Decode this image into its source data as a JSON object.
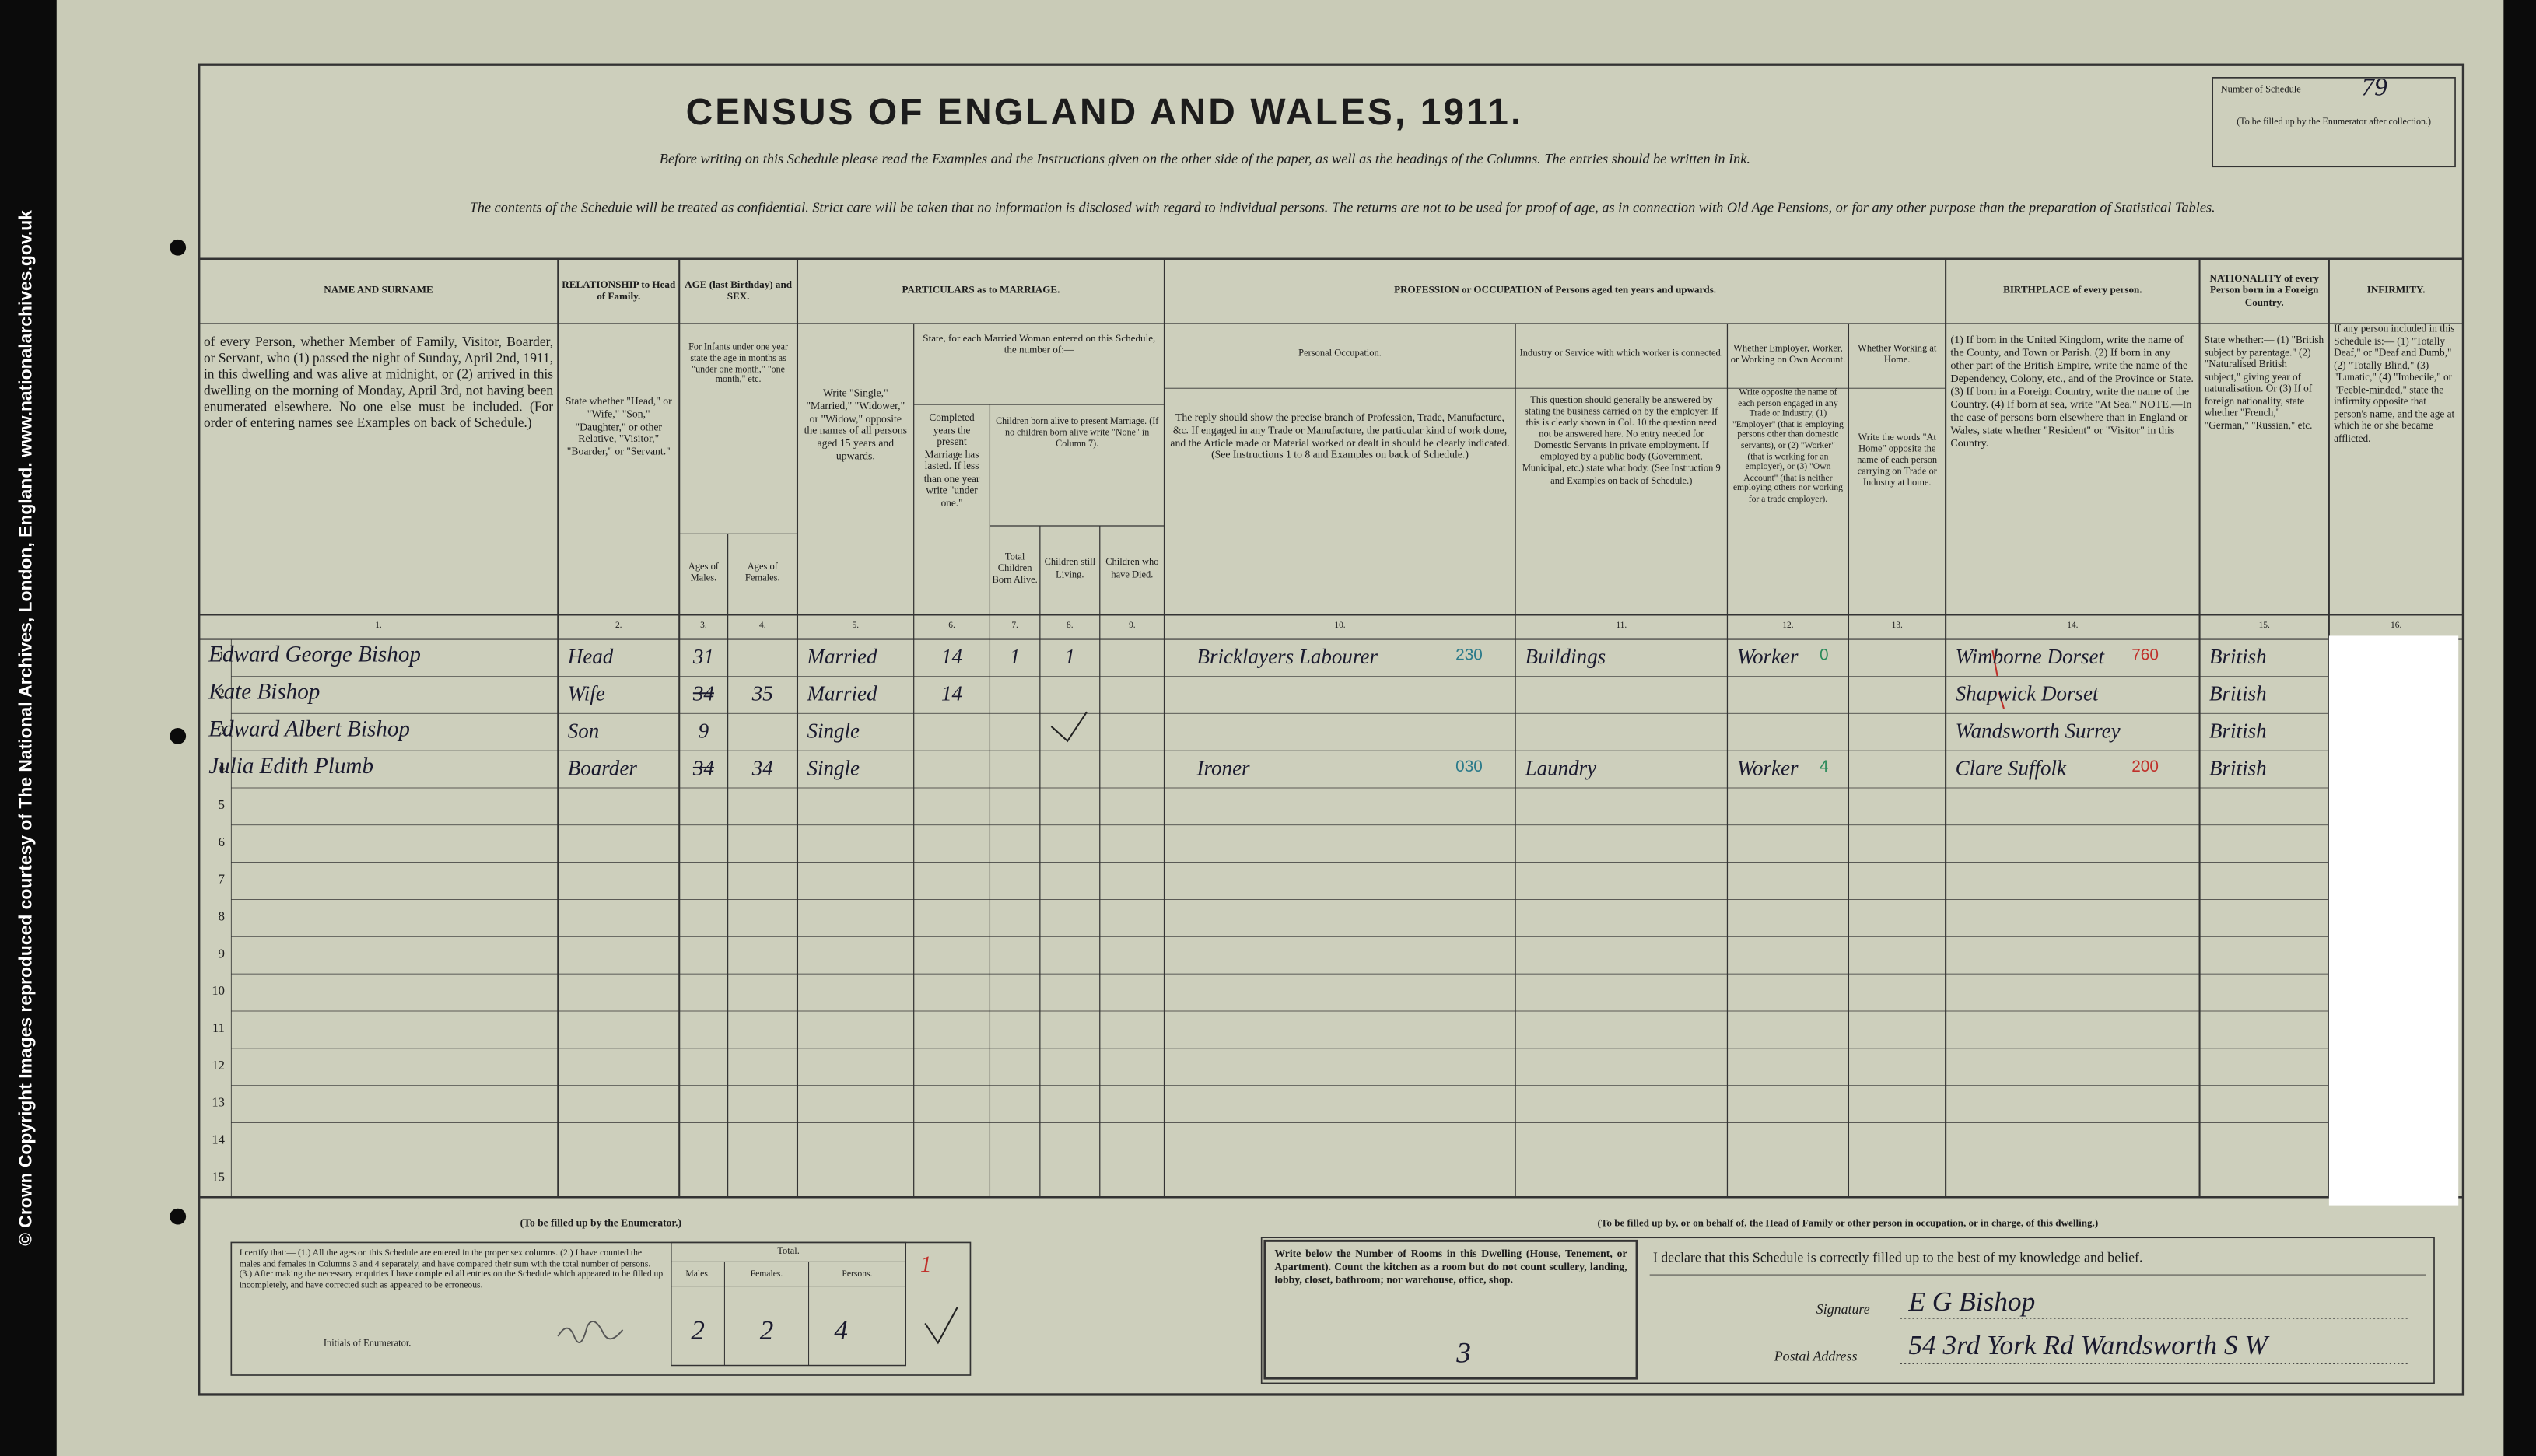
{
  "side_credit": "© Crown Copyright Images reproduced courtesy of The National Archives, London, England. www.nationalarchives.gov.uk",
  "header": {
    "title": "CENSUS OF ENGLAND AND WALES, 1911.",
    "instruction_1": "Before writing on this Schedule please read the Examples and the Instructions given on the other side of the paper, as well as the headings of the Columns. The entries should be written in Ink.",
    "instruction_2": "The contents of the Schedule will be treated as confidential. Strict care will be taken that no information is disclosed with regard to individual persons. The returns are not to be used for proof of age, as in connection with Old Age Pensions, or for any other purpose than the preparation of Statistical Tables.",
    "schedule_label": "Number of Schedule",
    "schedule_number": "79",
    "schedule_note": "(To be filled up by the Enumerator after collection.)"
  },
  "table": {
    "age_heading": "AGE (last Birthday) and SEX.",
    "age_description": "For Infants under one year state the age in months as \"under one month,\" \"one month,\" etc.",
    "marriage_heading": "PARTICULARS as to MARRIAGE.",
    "married_women_heading": "State, for each Married Woman entered on this Schedule, the number of:—",
    "children_heading": "Children born alive to present Marriage. (If no children born alive write \"None\" in Column 7).",
    "occupation_heading": "PROFESSION or OCCUPATION of Persons aged ten years and upwards.",
    "columns": [
      {
        "heading": "NAME AND SURNAME",
        "description": "of every Person, whether Member of Family, Visitor, Boarder, or Servant, who (1) passed the night of Sunday, April 2nd, 1911, in this dwelling and was alive at midnight, or (2) arrived in this dwelling on the morning of Monday, April 3rd, not having been enumerated elsewhere. No one else must be included. (For order of entering names see Examples on back of Schedule.)",
        "number": "1."
      },
      {
        "heading": "RELATIONSHIP to Head of Family.",
        "description": "State whether \"Head,\" or \"Wife,\" \"Son,\" \"Daughter,\" or other Relative, \"Visitor,\" \"Boarder,\" or \"Servant.\"",
        "number": "2."
      },
      {
        "heading": "Ages of Males.",
        "number": "3."
      },
      {
        "heading": "Ages of Females.",
        "number": "4."
      },
      {
        "description": "Write \"Single,\" \"Married,\" \"Widower,\" or \"Widow,\" opposite the names of all persons aged 15 years and upwards.",
        "number": "5."
      },
      {
        "description": "Completed years the present Marriage has lasted. If less than one year write \"under one.\"",
        "number": "6."
      },
      {
        "heading": "Total Children Born Alive.",
        "number": "7."
      },
      {
        "heading": "Children still Living.",
        "number": "8."
      },
      {
        "heading": "Children who have Died.",
        "number": "9."
      },
      {
        "heading": "Personal Occupation.",
        "description": "The reply should show the precise branch of Profession, Trade, Manufacture, &c. If engaged in any Trade or Manufacture, the particular kind of work done, and the Article made or Material worked or dealt in should be clearly indicated. (See Instructions 1 to 8 and Examples on back of Schedule.)",
        "number": "10."
      },
      {
        "heading": "Industry or Service with which worker is connected.",
        "description": "This question should generally be answered by stating the business carried on by the employer. If this is clearly shown in Col. 10 the question need not be answered here. No entry needed for Domestic Servants in private employment. If employed by a public body (Government, Municipal, etc.) state what body. (See Instruction 9 and Examples on back of Schedule.)",
        "number": "11."
      },
      {
        "heading": "Whether Employer, Worker, or Working on Own Account.",
        "description": "Write opposite the name of each person engaged in any Trade or Industry, (1) \"Employer\" (that is employing persons other than domestic servants), or (2) \"Worker\" (that is working for an employer), or (3) \"Own Account\" (that is neither employing others nor working for a trade employer).",
        "number": "12."
      },
      {
        "heading": "Whether Working at Home.",
        "description": "Write the words \"At Home\" opposite the name of each person carrying on Trade or Industry at home.",
        "number": "13."
      },
      {
        "heading": "BIRTHPLACE of every person.",
        "description": "(1) If born in the United Kingdom, write the name of the County, and Town or Parish. (2) If born in any other part of the British Empire, write the name of the Dependency, Colony, etc., and of the Province or State. (3) If born in a Foreign Country, write the name of the Country. (4) If born at sea, write \"At Sea.\" NOTE.—In the case of persons born elsewhere than in England or Wales, state whether \"Resident\" or \"Visitor\" in this Country.",
        "number": "14."
      },
      {
        "heading": "NATIONALITY of every Person born in a Foreign Country.",
        "description": "State whether:— (1) \"British subject by parentage.\" (2) \"Naturalised British subject,\" giving year of naturalisation. Or (3) If of foreign nationality, state whether \"French,\" \"German,\" \"Russian,\" etc.",
        "number": "15."
      },
      {
        "heading": "INFIRMITY.",
        "description": "If any person included in this Schedule is:— (1) \"Totally Deaf,\" or \"Deaf and Dumb,\" (2) \"Totally Blind,\" (3) \"Lunatic,\" (4) \"Imbecile,\" or \"Feeble-minded,\" state the infirmity opposite that person's name, and the age at which he or she became afflicted.",
        "number": "16."
      }
    ],
    "rows": [
      {
        "number": "1",
        "name": "Edward George Bishop",
        "relationship": "Head",
        "male_age": "31",
        "marital_status": "Married",
        "years_married": "14",
        "children_born": "1",
        "children_living": "1",
        "occupation": "Bricklayers Labourer",
        "occupation_code": "230",
        "industry": "Buildings",
        "employment": "Worker",
        "employment_code": "0",
        "birthplace": "Wimborne Dorset",
        "birthplace_code": "760",
        "nationality": "British"
      },
      {
        "number": "2",
        "name": "Kate Bishop",
        "relationship": "Wife",
        "male_age_struck": "34",
        "female_age": "35",
        "marital_status": "Married",
        "years_married": "14",
        "birthplace": "Shapwick Dorset",
        "nationality": "British"
      },
      {
        "number": "3",
        "name": "Edward Albert Bishop",
        "relationship": "Son",
        "male_age": "9",
        "marital_status": "Single",
        "birthplace": "Wandsworth Surrey",
        "nationality": "British"
      },
      {
        "number": "4",
        "name": "Julia Edith Plumb",
        "relationship": "Boarder",
        "male_age_struck": "34",
        "female_age": "34",
        "marital_status": "Single",
        "occupation": "Ironer",
        "occupation_code": "030",
        "industry": "Laundry",
        "employment": "Worker",
        "employment_code": "4",
        "birthplace": "Clare Suffolk",
        "birthplace_code": "200",
        "nationality": "British"
      },
      {
        "number": "5"
      },
      {
        "number": "6"
      },
      {
        "number": "7"
      },
      {
        "number": "8"
      },
      {
        "number": "9"
      },
      {
        "number": "10"
      },
      {
        "number": "11"
      },
      {
        "number": "12"
      },
      {
        "number": "13"
      },
      {
        "number": "14"
      },
      {
        "number": "15"
      }
    ]
  },
  "enumerator": {
    "heading": "(To be filled up by the Enumerator.)",
    "certify": "I certify that:— (1.) All the ages on this Schedule are entered in the proper sex columns. (2.) I have counted the males and females in Columns 3 and 4 separately, and have compared their sum with the total number of persons. (3.) After making the necessary enquiries I have completed all entries on the Schedule which appeared to be filled up incompletely, and have corrected such as appeared to be erroneous.",
    "initials_label": "Initials of Enumerator.",
    "total_label": "Total.",
    "males_label": "Males.",
    "females_label": "Females.",
    "persons_label": "Persons.",
    "males": "2",
    "females": "2",
    "persons": "4",
    "tally": "1"
  },
  "occupier": {
    "heading": "(To be filled up by, or on behalf of, the Head of Family or other person in occupation, or in charge, of this dwelling.)",
    "rooms_instruction": "Write below the Number of Rooms in this Dwelling (House, Tenement, or Apartment). Count the kitchen as a room but do not count scullery, landing, lobby, closet, bathroom; nor warehouse, office, shop.",
    "rooms": "3",
    "declaration": "I declare that this Schedule is correctly filled up to the best of my knowledge and belief.",
    "signature_label": "Signature",
    "signature": "E G Bishop",
    "address_label": "Postal Address",
    "address": "54 3rd York Rd Wandsworth S W"
  }
}
